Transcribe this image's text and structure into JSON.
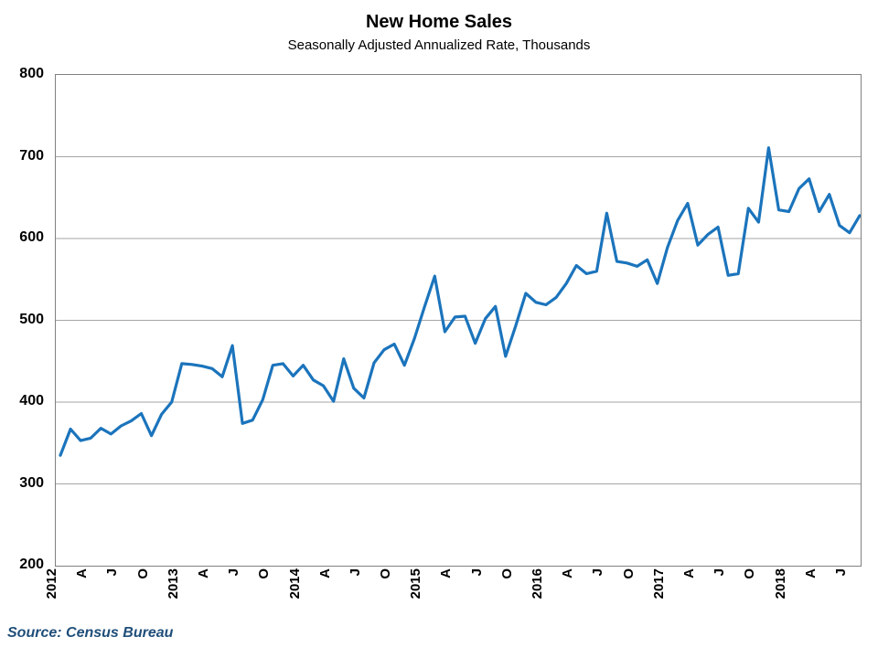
{
  "header": {
    "title": "New Home Sales",
    "subtitle": "Seasonally Adjusted Annualized Rate, Thousands"
  },
  "footer": {
    "source": "Source: Census Bureau"
  },
  "colors": {
    "line": "#1b74bc",
    "grid": "#a6a6a6",
    "plot_border": "#808080",
    "text": "#000000",
    "source_text": "#1f4e79"
  },
  "chart_data": {
    "type": "line",
    "title": "New Home Sales",
    "subtitle": "Seasonally Adjusted Annualized Rate, Thousands",
    "xlabel": "",
    "ylabel": "",
    "x_start": "2012-01",
    "x_end": "2018-08",
    "x_frequency": "monthly",
    "x_tick_every_months": 3,
    "x_tick_labels": [
      "2012",
      "A",
      "J",
      "O",
      "2013",
      "A",
      "J",
      "O",
      "2014",
      "A",
      "J",
      "O",
      "2015",
      "A",
      "J",
      "O",
      "2016",
      "A",
      "J",
      "O",
      "2017",
      "A",
      "J",
      "O",
      "2018",
      "A",
      "J"
    ],
    "ylim": [
      200,
      800
    ],
    "y_ticks": [
      200,
      300,
      400,
      500,
      600,
      700,
      800
    ],
    "grid": true,
    "legend_position": "none",
    "series": [
      {
        "name": "New Home Sales (SAAR, thousands)",
        "values": [
          335,
          367,
          353,
          356,
          368,
          361,
          371,
          377,
          386,
          359,
          385,
          400,
          447,
          446,
          444,
          441,
          431,
          469,
          374,
          378,
          403,
          445,
          447,
          432,
          445,
          427,
          420,
          401,
          453,
          417,
          405,
          448,
          464,
          471,
          445,
          478,
          517,
          554,
          486,
          504,
          505,
          472,
          502,
          517,
          456,
          493,
          533,
          522,
          519,
          528,
          545,
          567,
          557,
          560,
          631,
          572,
          570,
          566,
          574,
          545,
          589,
          622,
          643,
          592,
          605,
          614,
          555,
          557,
          637,
          620,
          711,
          635,
          633,
          661,
          673,
          633,
          654,
          616,
          607,
          628
        ]
      }
    ]
  }
}
